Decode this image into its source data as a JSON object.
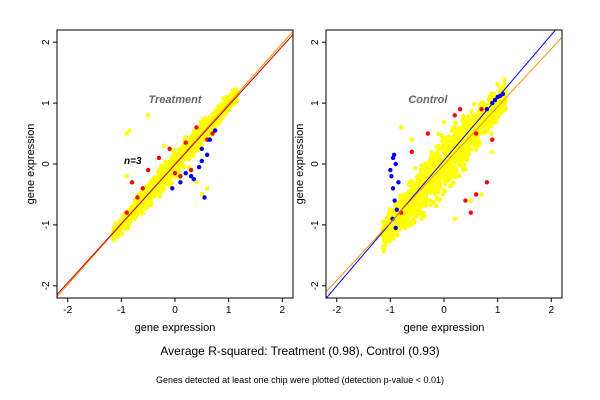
{
  "colors": {
    "points_main": "#ffff00",
    "points_red": "#ff0000",
    "points_blue": "#0000ff",
    "fit_line_orange": "#ff8c00",
    "fit_line_red": "#cc0000",
    "fit_line_blue": "#0000ff",
    "axes": "#000000",
    "panel_title": "#666666"
  },
  "captions": {
    "main": "Average R-squared: Treatment (0.98), Control (0.93)",
    "sub": "Genes detected at least one chip were plotted (detection p-value < 0.01)"
  },
  "chart_data": [
    {
      "type": "scatter",
      "title": "Treatment",
      "note": "n=3",
      "xlabel": "gene expression",
      "ylabel": "gene expression",
      "xlim": [
        -2.2,
        2.2
      ],
      "ylim": [
        -2.2,
        2.2
      ],
      "xticks": [
        -2,
        -1,
        0,
        1,
        2
      ],
      "yticks": [
        -2,
        -1,
        0,
        1,
        2
      ],
      "grid": false,
      "cloud": {
        "x_range": [
          -1.15,
          1.15
        ],
        "slope": 1.0,
        "spread": 0.1,
        "outliers": [
          [
            -0.9,
            0.5
          ],
          [
            -0.85,
            0.55
          ],
          [
            -0.9,
            -0.2
          ],
          [
            -0.5,
            0.8
          ],
          [
            0.5,
            -0.5
          ],
          [
            0.6,
            -0.4
          ],
          [
            -0.2,
            0.3
          ],
          [
            0.4,
            -0.3
          ]
        ]
      },
      "red_points": [
        [
          -0.8,
          -0.3
        ],
        [
          -0.6,
          -0.4
        ],
        [
          -0.3,
          0.1
        ],
        [
          0.1,
          -0.2
        ],
        [
          0.4,
          0.6
        ],
        [
          -0.9,
          -0.8
        ],
        [
          0.3,
          -0.1
        ],
        [
          -0.1,
          0.25
        ],
        [
          0.6,
          0.4
        ],
        [
          -0.5,
          -0.1
        ],
        [
          0.2,
          0.35
        ],
        [
          0.7,
          0.5
        ],
        [
          -0.7,
          -0.55
        ],
        [
          0.0,
          -0.15
        ]
      ],
      "blue_points": [
        [
          0.3,
          -0.2
        ],
        [
          0.5,
          0.05
        ],
        [
          0.6,
          0.15
        ],
        [
          -0.05,
          -0.4
        ],
        [
          0.2,
          -0.15
        ],
        [
          0.35,
          -0.25
        ],
        [
          0.45,
          -0.05
        ],
        [
          0.65,
          0.4
        ],
        [
          0.1,
          -0.3
        ],
        [
          0.5,
          0.25
        ],
        [
          0.55,
          -0.55
        ],
        [
          0.75,
          0.55
        ]
      ],
      "fit_lines": [
        {
          "color_key": "fit_line_orange",
          "slope": 0.99,
          "intercept": 0.0
        },
        {
          "color_key": "fit_line_red",
          "slope": 0.97,
          "intercept": -0.01
        }
      ]
    },
    {
      "type": "scatter",
      "title": "Control",
      "note": "",
      "xlabel": "gene expression",
      "ylabel": "gene expression",
      "xlim": [
        -2.2,
        2.2
      ],
      "ylim": [
        -2.2,
        2.2
      ],
      "xticks": [
        -2,
        -1,
        0,
        1,
        2
      ],
      "yticks": [
        -2,
        -1,
        0,
        1,
        2
      ],
      "grid": false,
      "cloud": {
        "x_range": [
          -1.15,
          1.15
        ],
        "slope": 1.0,
        "spread": 0.2,
        "outliers": [
          [
            -0.6,
            0.4
          ],
          [
            -0.8,
            0.6
          ],
          [
            0.5,
            -0.6
          ],
          [
            0.9,
            0.2
          ],
          [
            0.7,
            -0.5
          ],
          [
            0.2,
            -0.9
          ]
        ]
      },
      "red_points": [
        [
          -0.3,
          0.5
        ],
        [
          0.2,
          0.8
        ],
        [
          0.6,
          0.5
        ],
        [
          0.6,
          -0.5
        ],
        [
          0.8,
          -0.3
        ],
        [
          0.9,
          0.4
        ],
        [
          -0.8,
          -0.8
        ],
        [
          0.5,
          -0.8
        ],
        [
          0.3,
          0.9
        ],
        [
          0.4,
          -0.6
        ],
        [
          0.7,
          0.9
        ],
        [
          -0.6,
          0.2
        ]
      ],
      "blue_points": [
        [
          -0.95,
          0.1
        ],
        [
          -0.98,
          -0.2
        ],
        [
          -0.95,
          -0.4
        ],
        [
          -0.9,
          0.0
        ],
        [
          -0.92,
          -0.6
        ],
        [
          -0.85,
          -0.3
        ],
        [
          -1.0,
          -0.1
        ],
        [
          -0.93,
          0.15
        ],
        [
          -0.88,
          -0.75
        ],
        [
          -0.96,
          -0.9
        ],
        [
          -0.9,
          -1.05
        ],
        [
          0.8,
          0.9
        ],
        [
          0.9,
          1.0
        ],
        [
          1.0,
          1.1
        ],
        [
          1.1,
          1.15
        ],
        [
          0.95,
          1.05
        ],
        [
          1.05,
          1.12
        ]
      ],
      "fit_lines": [
        {
          "color_key": "fit_line_blue",
          "slope": 1.03,
          "intercept": 0.06
        },
        {
          "color_key": "fit_line_orange",
          "slope": 0.95,
          "intercept": -0.01
        }
      ]
    }
  ]
}
